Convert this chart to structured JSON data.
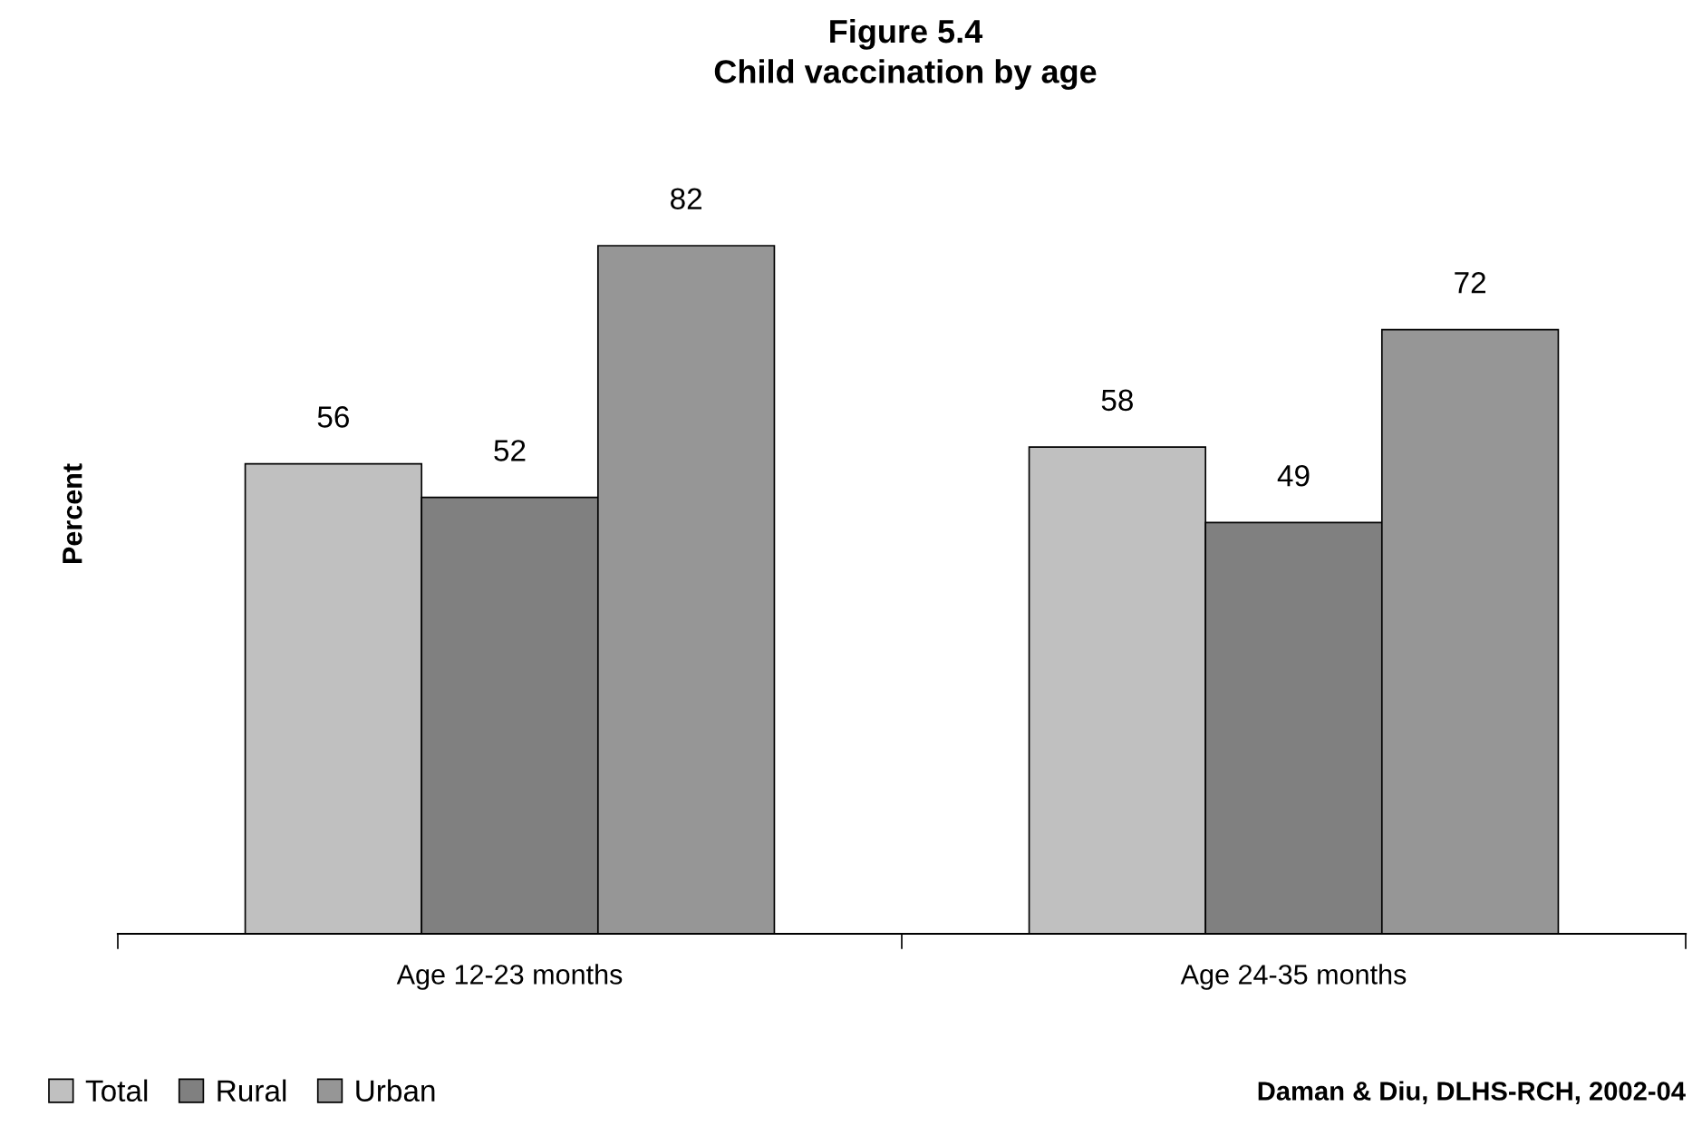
{
  "chart_data": {
    "type": "bar",
    "title": "Figure 5.4\nChild vaccination by age",
    "ylabel": "Percent",
    "categories": [
      "Age 12-23 months",
      "Age 24-35 months"
    ],
    "series": [
      {
        "name": "Total",
        "color": "#c0c0c0",
        "values": [
          56,
          58
        ]
      },
      {
        "name": "Rural",
        "color": "#808080",
        "values": [
          52,
          49
        ]
      },
      {
        "name": "Urban",
        "color": "#969696",
        "values": [
          82,
          72
        ]
      }
    ],
    "data_labels": true,
    "tick_labels": "x",
    "grid": false,
    "legend": "bottom left",
    "annotations": [
      "Daman & Diu, DLHS-RCH, 2002-04"
    ]
  }
}
